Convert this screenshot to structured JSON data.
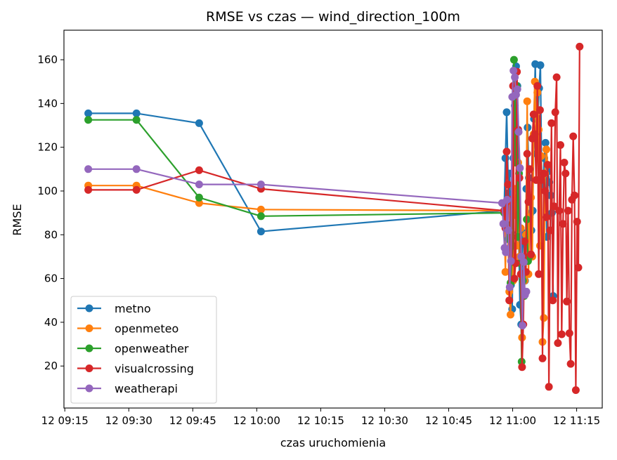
{
  "chart_data": {
    "type": "line",
    "title": "RMSE vs czas — wind_direction_100m",
    "xlabel": "czas uruchomienia",
    "ylabel": "RMSE",
    "x_ticks": [
      {
        "t": 555,
        "label": "12 09:15"
      },
      {
        "t": 570,
        "label": "12 09:30"
      },
      {
        "t": 585,
        "label": "12 09:45"
      },
      {
        "t": 600,
        "label": "12 10:00"
      },
      {
        "t": 615,
        "label": "12 10:15"
      },
      {
        "t": 630,
        "label": "12 10:30"
      },
      {
        "t": 645,
        "label": "12 10:45"
      },
      {
        "t": 660,
        "label": "12 11:00"
      },
      {
        "t": 675,
        "label": "12 11:15"
      }
    ],
    "y_ticks": [
      20,
      40,
      60,
      80,
      100,
      120,
      140,
      160
    ],
    "xlim": [
      554.8,
      681.0
    ],
    "ylim": [
      0.8,
      173.5
    ],
    "legend_position": "lower-left",
    "grid": false,
    "series": [
      {
        "name": "metno",
        "color": "#1f77b4",
        "x": [
          560.5,
          571.8,
          586.5,
          601.0,
          658.0,
          658.3,
          658.6,
          659.0,
          659.3,
          659.6,
          659.9,
          660.2,
          660.5,
          660.8,
          661.1,
          661.4,
          661.7,
          662.0,
          662.3,
          662.6,
          662.9,
          663.2,
          663.5,
          663.8,
          664.1,
          664.4,
          664.7,
          665.0,
          665.3,
          665.6,
          665.9,
          666.2,
          666.5,
          666.8,
          667.1,
          667.4,
          667.7,
          668.0,
          668.3,
          668.6,
          668.9,
          669.2,
          669.5
        ],
        "y": [
          135.5,
          135.5,
          131,
          81.5,
          91,
          115,
          136,
          99,
          108,
          57,
          46,
          115,
          139,
          157,
          148,
          81,
          48,
          39,
          81,
          76,
          59,
          101,
          129,
          106,
          89.5,
          82,
          91,
          133,
          158,
          117,
          133,
          147,
          157.5,
          107,
          103,
          115,
          122,
          79,
          109,
          104,
          98,
          90,
          52
        ],
        "values": [
          135.5,
          135.5,
          131,
          81.5,
          91,
          115,
          136,
          99,
          108,
          57,
          46,
          115,
          139,
          157,
          148,
          81,
          48,
          39,
          81,
          76,
          59,
          101,
          129,
          106,
          89.5,
          82,
          91,
          133,
          158,
          117,
          133,
          147,
          157.5,
          107,
          103,
          115,
          122,
          79,
          109,
          104,
          98,
          90,
          52
        ]
      },
      {
        "name": "openmeteo",
        "color": "#ff7f0e",
        "x": [
          560.5,
          571.8,
          586.5,
          601.0,
          658.0,
          658.3,
          658.6,
          658.9,
          659.2,
          659.5,
          659.8,
          660.1,
          660.4,
          660.7,
          661.0,
          661.3,
          661.6,
          661.9,
          662.2,
          662.5,
          662.8,
          663.1,
          663.4,
          663.7,
          664.0,
          664.3,
          664.6,
          664.9,
          665.2,
          665.5,
          665.8,
          666.1,
          666.4,
          666.7,
          667.0,
          667.3,
          667.6,
          667.9,
          668.2
        ],
        "y": [
          102.5,
          102.5,
          94.5,
          91.5,
          91,
          63,
          95,
          79,
          54,
          43.5,
          65,
          59,
          101,
          89,
          75,
          113,
          70,
          83,
          33,
          60,
          59,
          80,
          141,
          62,
          88,
          97,
          70,
          126,
          150,
          126,
          145,
          128,
          75,
          116,
          31,
          42,
          108,
          119,
          112
        ],
        "values": [
          102.5,
          102.5,
          94.5,
          91.5,
          91,
          63,
          95,
          79,
          54,
          43.5,
          65,
          59,
          101,
          89,
          75,
          113,
          70,
          83,
          33,
          60,
          59,
          80,
          141,
          62,
          88,
          97,
          70,
          126,
          150,
          126,
          145,
          128,
          75,
          116,
          31,
          42,
          108,
          119,
          112
        ],
        "_note": null
      },
      {
        "name": "openweather",
        "color": "#2ca02c",
        "x": [
          560.5,
          571.8,
          586.5,
          601.0,
          658.0,
          658.5,
          659.0,
          659.5,
          660.0,
          660.3,
          660.6,
          660.9,
          661.2,
          661.5,
          661.8,
          662.1,
          662.4,
          662.7,
          663.0,
          663.3,
          663.6,
          663.9
        ],
        "y": [
          132.5,
          132.5,
          97,
          88.5,
          90,
          85,
          78,
          58,
          75,
          160,
          113,
          148,
          79,
          108,
          67,
          22,
          59,
          52,
          68,
          87,
          68,
          70
        ],
        "values": [
          132.5,
          132.5,
          97,
          88.5,
          90,
          85,
          78,
          58,
          75,
          160,
          113,
          148,
          79,
          108,
          67,
          22,
          59,
          52,
          68,
          87,
          68,
          70
        ]
      },
      {
        "name": "visualcrossing",
        "color": "#d62728",
        "x": [
          560.5,
          571.8,
          586.5,
          601.0,
          658.0,
          658.3,
          658.6,
          658.9,
          659.2,
          659.5,
          659.8,
          660.1,
          660.4,
          660.7,
          661.0,
          661.3,
          661.6,
          661.9,
          662.2,
          662.5,
          662.8,
          663.1,
          663.4,
          663.7,
          664.0,
          664.3,
          664.6,
          664.9,
          665.2,
          665.5,
          665.8,
          666.1,
          666.4,
          666.7,
          667.0,
          667.3,
          667.6,
          667.9,
          668.2,
          668.5,
          668.8,
          669.1,
          669.4,
          669.7,
          670.0,
          670.3,
          670.6,
          670.9,
          671.2,
          671.5,
          671.8,
          672.1,
          672.4,
          672.7,
          673.0,
          673.3,
          673.6,
          673.9,
          674.2,
          674.5,
          674.8,
          675.1,
          675.4,
          675.7
        ],
        "y": [
          100.5,
          100.5,
          109.5,
          101,
          91,
          83,
          118,
          103,
          50,
          96,
          68,
          148,
          60,
          67,
          154.5,
          128,
          106,
          62,
          19.5,
          39,
          77,
          63,
          117,
          95,
          110,
          71,
          124,
          135,
          126,
          105,
          148,
          62,
          137,
          105,
          23.5,
          108,
          100,
          88,
          112,
          10.5,
          82,
          131,
          50,
          93,
          136,
          152,
          30.5,
          91,
          121,
          34.5,
          85,
          113,
          108,
          49.5,
          91,
          35,
          21,
          96,
          125,
          98,
          9,
          86,
          65,
          166
        ],
        "values": [
          100.5,
          100.5,
          109.5,
          101,
          91,
          83,
          118,
          103,
          50,
          96,
          68,
          148,
          60,
          67,
          154.5,
          128,
          106,
          62,
          19.5,
          39,
          77,
          63,
          117,
          95,
          110,
          71,
          124,
          135,
          126,
          105,
          148,
          62,
          137,
          105,
          23.5,
          108,
          100,
          88,
          112,
          10.5,
          82,
          131,
          50,
          93,
          136,
          152,
          30.5,
          91,
          121,
          34.5,
          85,
          113,
          108,
          49.5,
          91,
          35,
          21,
          96,
          125,
          98,
          9,
          86,
          65,
          166
        ]
      },
      {
        "name": "weatherapi",
        "color": "#9467bd",
        "x": [
          560.5,
          571.8,
          586.5,
          601.0,
          657.5,
          657.8,
          658.1,
          658.4,
          658.7,
          659.0,
          659.3,
          659.6,
          659.9,
          660.2,
          660.5,
          660.8,
          661.1,
          661.4,
          661.7,
          662.0,
          662.3,
          662.6,
          662.9,
          663.2
        ],
        "y": [
          110,
          110,
          103,
          103,
          94.5,
          85,
          74,
          72,
          96,
          82,
          56,
          68,
          143,
          155,
          152,
          144,
          146.5,
          127,
          110.5,
          70,
          38.5,
          67.5,
          52.5,
          54
        ],
        "values": [
          110,
          110,
          103,
          103,
          94.5,
          85,
          74,
          72,
          96,
          82,
          56,
          68,
          143,
          155,
          152,
          144,
          146.5,
          127,
          110.5,
          70,
          38.5,
          67.5,
          52.5,
          54
        ]
      }
    ]
  }
}
